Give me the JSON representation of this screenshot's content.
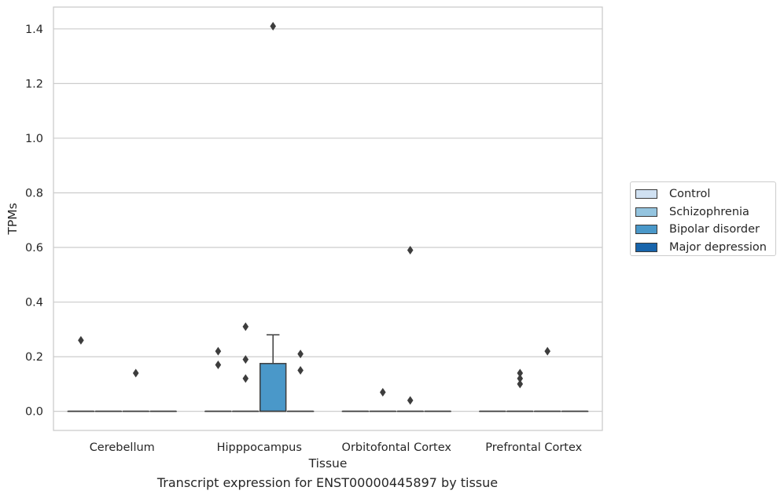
{
  "chart_data": {
    "type": "box",
    "xlabel": "Tissue",
    "ylabel": "TPMs",
    "caption": "Transcript expression for ENST00000445897 by tissue",
    "ylim": [
      -0.07,
      1.48
    ],
    "yticks": [
      0.0,
      0.2,
      0.4,
      0.6,
      0.8,
      1.0,
      1.2,
      1.4
    ],
    "ytick_labels": [
      "0.0",
      "0.2",
      "0.4",
      "0.6",
      "0.8",
      "1.0",
      "1.2",
      "1.4"
    ],
    "categories": [
      "Cerebellum",
      "Hipppocampus",
      "Orbitofontal Cortex",
      "Prefrontal Cortex"
    ],
    "grid": "horizontal",
    "legend_position": "right",
    "series": [
      {
        "name": "Control",
        "color": "#d0e1f2",
        "boxes": [
          {
            "q1": 0,
            "median": 0,
            "q3": 0,
            "whisker_low": 0,
            "whisker_high": 0,
            "outliers": [
              0.26
            ]
          },
          {
            "q1": 0,
            "median": 0,
            "q3": 0,
            "whisker_low": 0,
            "whisker_high": 0,
            "outliers": [
              0.22,
              0.17
            ]
          },
          {
            "q1": 0,
            "median": 0,
            "q3": 0,
            "whisker_low": 0,
            "whisker_high": 0,
            "outliers": []
          },
          {
            "q1": 0,
            "median": 0,
            "q3": 0,
            "whisker_low": 0,
            "whisker_high": 0,
            "outliers": []
          }
        ]
      },
      {
        "name": "Schizophrenia",
        "color": "#94c4df",
        "boxes": [
          {
            "q1": 0,
            "median": 0,
            "q3": 0,
            "whisker_low": 0,
            "whisker_high": 0,
            "outliers": []
          },
          {
            "q1": 0,
            "median": 0,
            "q3": 0,
            "whisker_low": 0,
            "whisker_high": 0,
            "outliers": [
              0.31,
              0.19,
              0.12
            ]
          },
          {
            "q1": 0,
            "median": 0,
            "q3": 0,
            "whisker_low": 0,
            "whisker_high": 0,
            "outliers": [
              0.07
            ]
          },
          {
            "q1": 0,
            "median": 0,
            "q3": 0,
            "whisker_low": 0,
            "whisker_high": 0,
            "outliers": [
              0.14,
              0.12,
              0.1
            ]
          }
        ]
      },
      {
        "name": "Bipolar disorder",
        "color": "#4a98c9",
        "boxes": [
          {
            "q1": 0,
            "median": 0,
            "q3": 0,
            "whisker_low": 0,
            "whisker_high": 0,
            "outliers": [
              0.14
            ]
          },
          {
            "q1": 0,
            "median": 0,
            "q3": 0.175,
            "whisker_low": 0,
            "whisker_high": 0.28,
            "outliers": [
              1.41
            ]
          },
          {
            "q1": 0,
            "median": 0,
            "q3": 0,
            "whisker_low": 0,
            "whisker_high": 0,
            "outliers": [
              0.59,
              0.04
            ]
          },
          {
            "q1": 0,
            "median": 0,
            "q3": 0,
            "whisker_low": 0,
            "whisker_high": 0,
            "outliers": [
              0.22
            ]
          }
        ]
      },
      {
        "name": "Major depression",
        "color": "#1764ab",
        "boxes": [
          {
            "q1": 0,
            "median": 0,
            "q3": 0,
            "whisker_low": 0,
            "whisker_high": 0,
            "outliers": []
          },
          {
            "q1": 0,
            "median": 0,
            "q3": 0,
            "whisker_low": 0,
            "whisker_high": 0,
            "outliers": [
              0.21,
              0.15
            ]
          },
          {
            "q1": 0,
            "median": 0,
            "q3": 0,
            "whisker_low": 0,
            "whisker_high": 0,
            "outliers": []
          },
          {
            "q1": 0,
            "median": 0,
            "q3": 0,
            "whisker_low": 0,
            "whisker_high": 0,
            "outliers": []
          }
        ]
      }
    ]
  }
}
